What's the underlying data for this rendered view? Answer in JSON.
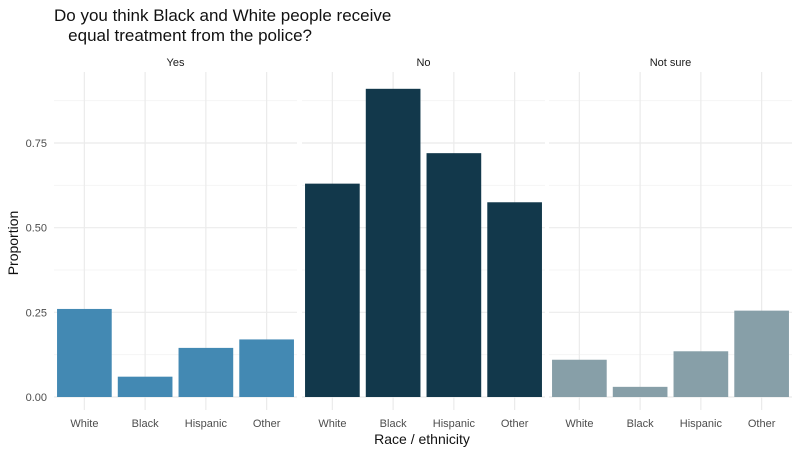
{
  "chart_data": {
    "type": "bar",
    "title": "Do you think Black and White people receive\n   equal treatment from the police?",
    "xlabel": "Race / ethnicity",
    "ylabel": "Proportion",
    "categories": [
      "White",
      "Black",
      "Hispanic",
      "Other"
    ],
    "ylim": [
      0,
      0.92
    ],
    "yticks": [
      0.0,
      0.25,
      0.5,
      0.75
    ],
    "ytick_labels": [
      "0.00",
      "0.25",
      "0.50",
      "0.75"
    ],
    "grid": true,
    "legend": "none",
    "panels": [
      {
        "name": "Yes",
        "color": "#4389b3",
        "values": [
          0.26,
          0.06,
          0.145,
          0.17
        ]
      },
      {
        "name": "No",
        "color": "#12384b",
        "values": [
          0.63,
          0.91,
          0.72,
          0.575
        ]
      },
      {
        "name": "Not sure",
        "color": "#879fa8",
        "values": [
          0.11,
          0.03,
          0.135,
          0.255
        ]
      }
    ]
  }
}
